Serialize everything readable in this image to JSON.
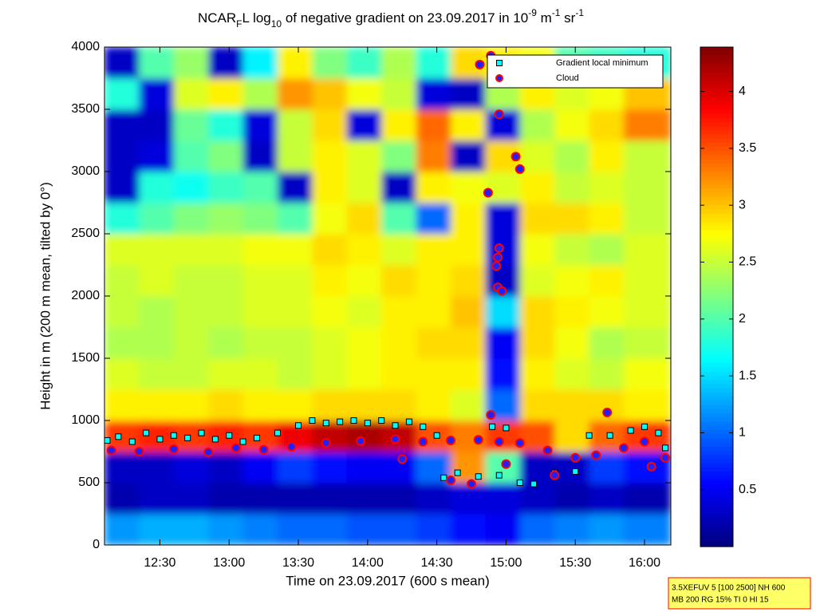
{
  "chart_data": {
    "type": "heatmap",
    "title": [
      "NCAR",
      "F",
      "L log",
      "10",
      " of negative gradient on 23.09.2017 in 10",
      "-9",
      " m",
      "-1",
      " sr",
      "-1"
    ],
    "xlabel": "Time on 23.09.2017 (600 s mean)",
    "ylabel": "Height in m (200 m mean, tilted by 0°)",
    "xlim": [
      12.1,
      16.19
    ],
    "ylim": [
      0,
      4000
    ],
    "xticks": [
      {
        "value": 12.5,
        "label": "12:30"
      },
      {
        "value": 13,
        "label": "13:00"
      },
      {
        "value": 13.5,
        "label": "13:30"
      },
      {
        "value": 14,
        "label": "14:00"
      },
      {
        "value": 14.5,
        "label": "14:30"
      },
      {
        "value": 15,
        "label": "15:00"
      },
      {
        "value": 15.5,
        "label": "15:30"
      },
      {
        "value": 16,
        "label": "16:00"
      }
    ],
    "yticks": [
      0,
      500,
      1000,
      1500,
      2000,
      2500,
      3000,
      3500,
      4000
    ],
    "colormap": "jet",
    "clim": [
      0,
      4.39
    ],
    "cticks": [
      0.5,
      1,
      1.5,
      2,
      2.5,
      3,
      3.5,
      4
    ],
    "xbins": [
      12.1,
      12.35,
      12.6,
      12.85,
      13.1,
      13.35,
      13.6,
      13.85,
      14.1,
      14.35,
      14.6,
      14.85,
      15.1,
      15.35,
      15.6,
      15.85,
      16.19
    ],
    "ybins": [
      0,
      250,
      500,
      750,
      1000,
      1250,
      1500,
      1750,
      2000,
      2250,
      2500,
      2750,
      3000,
      3250,
      3500,
      3750,
      4000
    ],
    "z": [
      [
        1.2,
        1.3,
        1.3,
        1.2,
        1.1,
        1.0,
        1.0,
        0.9,
        0.9,
        0.8,
        0.6,
        0.5,
        1.0,
        1.1,
        1.2,
        1.1
      ],
      [
        0.2,
        0.3,
        0.3,
        0.2,
        0.2,
        0.2,
        0.2,
        0.2,
        0.2,
        0.3,
        0.4,
        0.4,
        0.3,
        0.2,
        0.3,
        0.2
      ],
      [
        0.3,
        0.3,
        0.4,
        0.3,
        0.5,
        0.8,
        0.6,
        0.5,
        0.5,
        1.0,
        3.2,
        2.0,
        0.3,
        0.3,
        0.8,
        0.6
      ],
      [
        3.6,
        3.7,
        3.6,
        3.7,
        3.6,
        3.9,
        4.1,
        4.2,
        4.1,
        3.5,
        3.3,
        3.6,
        3.5,
        2.9,
        3.4,
        3.6
      ],
      [
        2.8,
        2.8,
        2.8,
        2.9,
        2.8,
        2.8,
        2.9,
        2.9,
        2.9,
        2.8,
        2.6,
        1.0,
        2.9,
        2.9,
        2.9,
        2.8
      ],
      [
        2.6,
        2.5,
        2.5,
        2.6,
        2.6,
        2.5,
        2.6,
        2.7,
        2.8,
        2.8,
        2.8,
        0.6,
        2.8,
        2.6,
        2.5,
        2.7
      ],
      [
        2.4,
        2.4,
        2.5,
        2.4,
        2.5,
        2.5,
        2.6,
        2.7,
        2.8,
        2.9,
        2.9,
        0.5,
        2.9,
        2.7,
        2.4,
        2.5
      ],
      [
        2.5,
        2.4,
        2.5,
        2.5,
        2.6,
        2.6,
        2.7,
        2.6,
        2.8,
        2.8,
        3.0,
        1.5,
        2.9,
        2.8,
        2.7,
        2.6
      ],
      [
        2.5,
        2.6,
        2.5,
        2.5,
        2.6,
        2.6,
        2.8,
        2.7,
        2.9,
        2.8,
        2.9,
        0.3,
        2.6,
        2.7,
        2.8,
        2.6
      ],
      [
        2.6,
        2.6,
        2.6,
        2.6,
        2.7,
        2.7,
        2.9,
        2.8,
        2.6,
        2.8,
        2.8,
        0.4,
        2.7,
        2.5,
        2.4,
        2.6
      ],
      [
        1.8,
        2.0,
        2.2,
        2.3,
        2.2,
        2.0,
        2.7,
        2.9,
        2.0,
        1.0,
        2.8,
        0.4,
        2.9,
        2.9,
        2.8,
        2.5
      ],
      [
        0.3,
        1.8,
        1.7,
        1.9,
        2.0,
        0.3,
        2.8,
        2.6,
        0.3,
        2.8,
        2.7,
        2.6,
        2.8,
        2.5,
        2.6,
        2.5
      ],
      [
        0.3,
        0.4,
        2.0,
        2.2,
        0.3,
        2.5,
        2.8,
        2.6,
        2.2,
        3.3,
        0.3,
        2.9,
        2.6,
        2.4,
        2.8,
        2.5
      ],
      [
        0.3,
        0.3,
        2.1,
        1.8,
        0.4,
        2.5,
        2.9,
        0.4,
        2.8,
        3.4,
        2.8,
        0.4,
        2.4,
        2.7,
        2.9,
        3.3
      ],
      [
        1.8,
        0.4,
        2.6,
        2.8,
        2.4,
        3.2,
        3.0,
        2.7,
        2.5,
        0.4,
        0.3,
        2.4,
        2.8,
        2.6,
        2.7,
        3.0
      ],
      [
        0.3,
        2.0,
        2.3,
        0.3,
        1.6,
        2.8,
        2.2,
        1.9,
        2.4,
        1.8,
        2.9,
        2.8,
        2.7,
        2.0,
        1.9,
        1.8
      ]
    ],
    "series": [
      {
        "name": "Gradient local minimum",
        "type": "scatter",
        "marker": "square",
        "color": "#00ffff",
        "x": [
          12.12,
          12.2,
          12.3,
          12.4,
          12.5,
          12.6,
          12.7,
          12.8,
          12.9,
          13.0,
          13.1,
          13.2,
          13.35,
          13.5,
          13.6,
          13.7,
          13.8,
          13.9,
          14.0,
          14.1,
          14.2,
          14.3,
          14.4,
          14.5,
          14.55,
          14.65,
          14.8,
          14.9,
          14.95,
          15.0,
          15.1,
          15.2,
          15.35,
          15.5,
          15.6,
          15.75,
          15.9,
          16.0,
          16.1,
          16.15
        ],
        "y": [
          840,
          870,
          830,
          900,
          850,
          880,
          860,
          900,
          850,
          880,
          830,
          860,
          900,
          960,
          1000,
          980,
          990,
          1000,
          980,
          1000,
          960,
          990,
          950,
          880,
          540,
          580,
          550,
          950,
          560,
          940,
          500,
          490,
          580,
          590,
          880,
          880,
          920,
          950,
          900,
          780
        ]
      },
      {
        "name": "Cloud",
        "type": "scatter",
        "marker": "circle",
        "color": "#ff0000",
        "x": [
          12.15,
          12.35,
          12.6,
          12.85,
          13.05,
          13.25,
          13.45,
          13.7,
          13.95,
          14.2,
          14.4,
          14.6,
          14.8,
          14.95,
          15.1,
          15.3,
          15.5,
          15.65,
          15.85,
          16.0,
          16.15,
          14.25,
          14.6,
          14.75,
          15.0,
          15.35,
          16.05,
          14.81,
          14.89,
          14.95,
          15.07,
          15.1,
          14.87,
          14.95,
          14.94,
          14.93,
          14.94,
          14.97,
          14.89,
          15.73
        ],
        "y": [
          760,
          750,
          770,
          745,
          780,
          765,
          790,
          820,
          835,
          850,
          830,
          840,
          845,
          830,
          820,
          760,
          700,
          720,
          780,
          830,
          700,
          690,
          520,
          490,
          650,
          560,
          630,
          3860,
          3930,
          3460,
          3120,
          3020,
          2830,
          2385,
          2310,
          2240,
          2070,
          2040,
          1045,
          1065
        ]
      }
    ],
    "legend": "upper right",
    "annotations": [
      "3.5XEFUV 5 [100 2500] NH 600",
      "MB 200 RG 15% TI 0 HI 15"
    ]
  }
}
